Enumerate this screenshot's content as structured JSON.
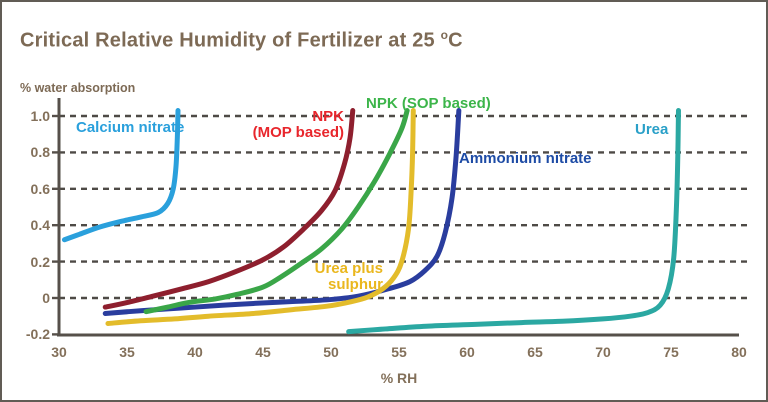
{
  "title": {
    "main": "Critical Relative Humidity of Fertilizer at 25",
    "degree_symbol": "o",
    "temp_unit": "C"
  },
  "colors": {
    "title_text": "#7d6a55",
    "tick_text": "#83705a",
    "axis": "#56504a",
    "gridline": "#4e4a46",
    "frame_border": "#615c55"
  },
  "chart_data": {
    "type": "line",
    "title": "Critical Relative Humidity of Fertilizer at 25 oC",
    "xlabel": "% RH",
    "ylabel": "% water absorption",
    "xlim": [
      30,
      80
    ],
    "ylim": [
      -0.2,
      1.0
    ],
    "x_ticks": [
      "30",
      "35",
      "40",
      "45",
      "50",
      "55",
      "60",
      "65",
      "70",
      "75",
      "80"
    ],
    "y_ticks": [
      "1.0",
      "0.8",
      "0.6",
      "0.4",
      "0.2",
      "0",
      "-0.2"
    ],
    "grid": "horizontal-dashed",
    "legend_position": "inline-curve-labels",
    "series": [
      {
        "name": "Ammonium nitrate",
        "color": "#2a3d9e",
        "points": [
          [
            33.4,
            -0.085
          ],
          [
            36,
            -0.07
          ],
          [
            39,
            -0.055
          ],
          [
            42,
            -0.04
          ],
          [
            44.3,
            -0.03
          ],
          [
            47,
            -0.02
          ],
          [
            49.7,
            -0.01
          ],
          [
            52,
            0.01
          ],
          [
            54.2,
            0.05
          ],
          [
            55.8,
            0.09
          ],
          [
            56.9,
            0.15
          ],
          [
            57.8,
            0.23
          ],
          [
            58.4,
            0.36
          ],
          [
            58.9,
            0.55
          ],
          [
            59.2,
            0.78
          ],
          [
            59.4,
            1.03
          ]
        ]
      },
      {
        "name": "Urea plus sulphur",
        "color": "#e3bc2b",
        "points": [
          [
            33.6,
            -0.14
          ],
          [
            36,
            -0.125
          ],
          [
            38.5,
            -0.115
          ],
          [
            41,
            -0.1
          ],
          [
            44.3,
            -0.085
          ],
          [
            47,
            -0.065
          ],
          [
            49.7,
            -0.045
          ],
          [
            51.5,
            -0.02
          ],
          [
            52.7,
            0.005
          ],
          [
            53.8,
            0.05
          ],
          [
            54.6,
            0.11
          ],
          [
            55.2,
            0.2
          ],
          [
            55.7,
            0.38
          ],
          [
            55.9,
            0.6
          ],
          [
            56.0,
            0.8
          ],
          [
            56.05,
            1.03
          ]
        ]
      },
      {
        "name": "NPK (SOP based)",
        "color": "#3aa648",
        "points": [
          [
            36.4,
            -0.075
          ],
          [
            38,
            -0.05
          ],
          [
            39.5,
            -0.025
          ],
          [
            41.5,
            -0.005
          ],
          [
            43.1,
            0.02
          ],
          [
            45,
            0.06
          ],
          [
            46.3,
            0.115
          ],
          [
            47.8,
            0.19
          ],
          [
            49.3,
            0.27
          ],
          [
            50.8,
            0.38
          ],
          [
            52,
            0.5
          ],
          [
            53.2,
            0.64
          ],
          [
            54.3,
            0.79
          ],
          [
            55.2,
            0.93
          ],
          [
            55.6,
            1.03
          ]
        ]
      },
      {
        "name": "NPK (MOP based)",
        "color": "#8e1f2e",
        "points": [
          [
            33.4,
            -0.05
          ],
          [
            35,
            -0.025
          ],
          [
            36.9,
            0.01
          ],
          [
            39,
            0.05
          ],
          [
            41,
            0.09
          ],
          [
            43,
            0.145
          ],
          [
            45,
            0.21
          ],
          [
            46.5,
            0.28
          ],
          [
            48,
            0.38
          ],
          [
            49.3,
            0.48
          ],
          [
            50.3,
            0.59
          ],
          [
            51,
            0.74
          ],
          [
            51.4,
            0.88
          ],
          [
            51.6,
            1.03
          ]
        ]
      },
      {
        "name": "Calcium nitrate",
        "color": "#2aa0dc",
        "points": [
          [
            30.4,
            0.32
          ],
          [
            31.5,
            0.35
          ],
          [
            33,
            0.39
          ],
          [
            34.5,
            0.42
          ],
          [
            36,
            0.445
          ],
          [
            37.3,
            0.47
          ],
          [
            38,
            0.52
          ],
          [
            38.4,
            0.6
          ],
          [
            38.6,
            0.72
          ],
          [
            38.7,
            0.88
          ],
          [
            38.75,
            1.03
          ]
        ]
      },
      {
        "name": "Urea",
        "color": "#2ba8a2",
        "points": [
          [
            51.3,
            -0.185
          ],
          [
            54,
            -0.17
          ],
          [
            57,
            -0.155
          ],
          [
            60.6,
            -0.145
          ],
          [
            64,
            -0.135
          ],
          [
            67,
            -0.128
          ],
          [
            70,
            -0.115
          ],
          [
            72,
            -0.1
          ],
          [
            73.3,
            -0.08
          ],
          [
            74.2,
            -0.04
          ],
          [
            74.8,
            0.05
          ],
          [
            75.2,
            0.22
          ],
          [
            75.4,
            0.5
          ],
          [
            75.5,
            0.78
          ],
          [
            75.55,
            1.03
          ]
        ]
      }
    ],
    "annotations": [
      {
        "id": "calcium-nitrate",
        "line1": "Calcium nitrate",
        "line2": "",
        "color": "#2aa0dc"
      },
      {
        "id": "npk-mop",
        "line1": "NPK",
        "line2": "(MOP based)",
        "color": "#e8262c"
      },
      {
        "id": "npk-sop",
        "line1": "NPK (SOP based)",
        "line2": "",
        "color": "#3cb54a"
      },
      {
        "id": "ammonium-nitrate",
        "line1": "Ammonium nitrate",
        "line2": "",
        "color": "#1d4ba5"
      },
      {
        "id": "urea-plus-sulphur",
        "line1": "Urea plus",
        "line2": "sulphur",
        "color": "#eab71e"
      },
      {
        "id": "urea",
        "line1": "Urea",
        "line2": "",
        "color": "#2aa0c8"
      }
    ]
  }
}
